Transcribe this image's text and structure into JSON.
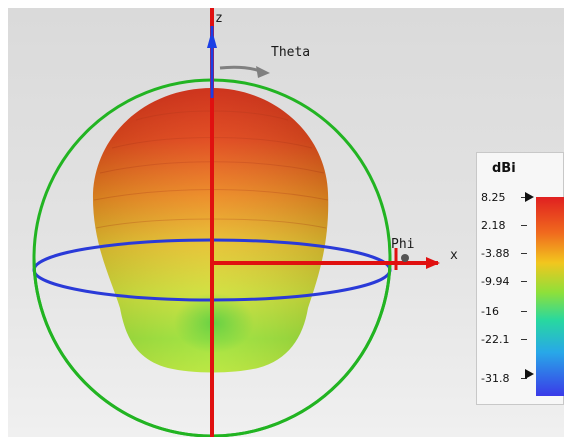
{
  "axes": {
    "z_label": "z",
    "x_label": "x",
    "theta_label": "Theta",
    "phi_label": "Phi"
  },
  "colors": {
    "x_axis": "#e01010",
    "z_axis": "#1a3fe6",
    "theta_circle": "#22b422",
    "phi_circle": "#2a3ad8",
    "pattern_top": "#d83a10",
    "pattern_bottom": "#7dda3c"
  },
  "legend": {
    "unit": "dBi",
    "ticks": [
      "8.25",
      "2.18",
      "-3.88",
      "-9.94",
      "-16",
      "-22.1",
      "-31.8"
    ],
    "max": 8.25,
    "min": -31.8
  }
}
